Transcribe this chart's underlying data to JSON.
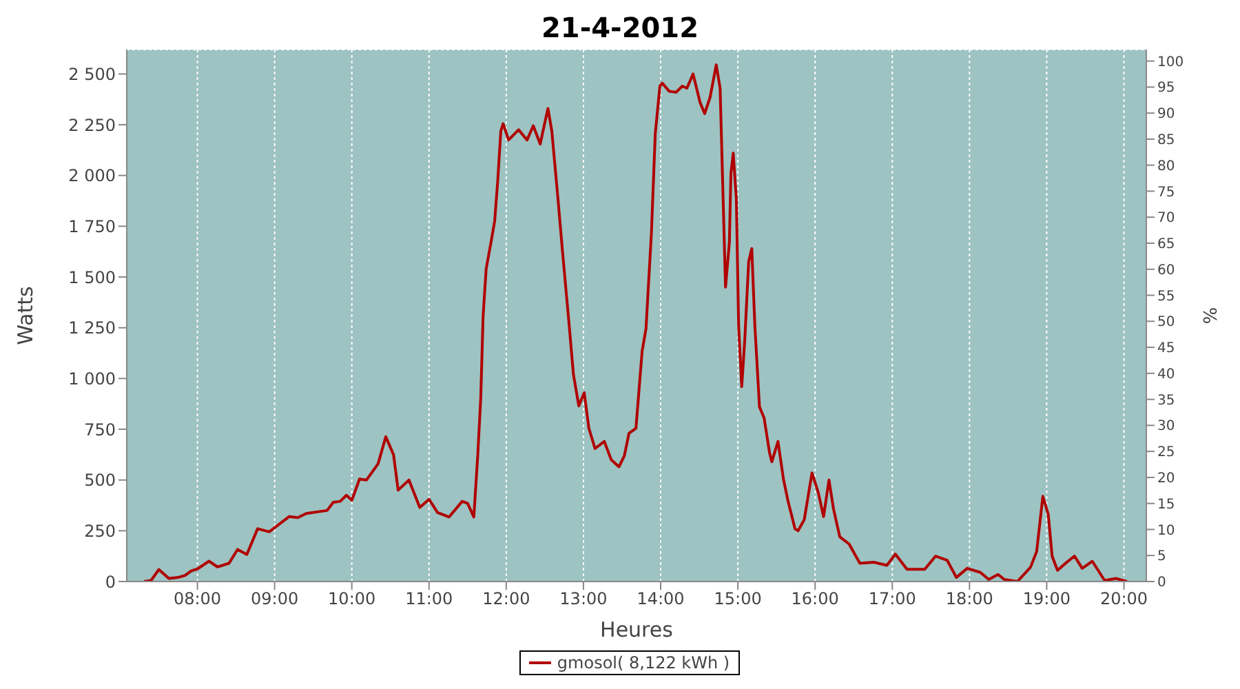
{
  "chart_data": {
    "type": "line",
    "title": "21-4-2012",
    "xlabel": "Heures",
    "ylabel": "Watts",
    "y2label": "%",
    "x": [
      7.31,
      7.4,
      7.5,
      7.63,
      7.75,
      7.84,
      7.92,
      8.0,
      8.15,
      8.26,
      8.41,
      8.52,
      8.64,
      8.78,
      8.93,
      9.19,
      9.3,
      9.41,
      9.68,
      9.76,
      9.85,
      9.93,
      10.0,
      10.1,
      10.19,
      10.34,
      10.44,
      10.54,
      10.6,
      10.74,
      10.88,
      11.0,
      11.11,
      11.26,
      11.43,
      11.5,
      11.58,
      11.63,
      11.67,
      11.7,
      11.74,
      11.8,
      11.85,
      11.89,
      11.93,
      11.96,
      12.03,
      12.16,
      12.27,
      12.35,
      12.44,
      12.54,
      12.59,
      12.67,
      12.73,
      12.81,
      12.87,
      12.94,
      13.01,
      13.07,
      13.15,
      13.27,
      13.36,
      13.46,
      13.53,
      13.59,
      13.68,
      13.76,
      13.81,
      13.88,
      13.93,
      13.99,
      14.02,
      14.11,
      14.2,
      14.28,
      14.34,
      14.42,
      14.51,
      14.57,
      14.64,
      14.72,
      14.77,
      14.81,
      14.84,
      14.89,
      14.91,
      14.94,
      14.98,
      15.01,
      15.05,
      15.09,
      15.14,
      15.18,
      15.22,
      15.28,
      15.34,
      15.41,
      15.44,
      15.52,
      15.59,
      15.65,
      15.74,
      15.78,
      15.86,
      15.96,
      16.04,
      16.11,
      16.18,
      16.24,
      16.32,
      16.44,
      16.58,
      16.76,
      16.93,
      17.04,
      17.19,
      17.42,
      17.56,
      17.71,
      17.83,
      17.97,
      18.14,
      18.25,
      18.37,
      18.45,
      18.62,
      18.79,
      18.87,
      18.95,
      19.02,
      19.07,
      19.14,
      19.26,
      19.36,
      19.46,
      19.59,
      19.75,
      19.9,
      20.04
    ],
    "series": [
      {
        "name": "gmosol( 8,122 kWh )",
        "color": "#b00000",
        "values": [
          0,
          5,
          59,
          15,
          20,
          30,
          52,
          62,
          100,
          72,
          90,
          158,
          133,
          260,
          245,
          320,
          315,
          335,
          350,
          390,
          395,
          425,
          400,
          505,
          500,
          580,
          713,
          625,
          450,
          500,
          365,
          405,
          340,
          318,
          395,
          385,
          318,
          615,
          905,
          1305,
          1540,
          1665,
          1775,
          1975,
          2220,
          2255,
          2175,
          2225,
          2175,
          2245,
          2155,
          2330,
          2220,
          1885,
          1620,
          1285,
          1020,
          865,
          930,
          755,
          655,
          690,
          600,
          565,
          620,
          730,
          755,
          1135,
          1245,
          1715,
          2205,
          2440,
          2455,
          2415,
          2410,
          2440,
          2430,
          2500,
          2360,
          2305,
          2385,
          2545,
          2430,
          1870,
          1450,
          1670,
          2010,
          2110,
          1885,
          1260,
          960,
          1195,
          1575,
          1640,
          1260,
          860,
          805,
          635,
          590,
          690,
          505,
          395,
          260,
          250,
          305,
          535,
          440,
          320,
          500,
          355,
          220,
          185,
          90,
          95,
          80,
          135,
          60,
          60,
          125,
          105,
          20,
          65,
          45,
          10,
          35,
          10,
          0,
          70,
          148,
          420,
          330,
          125,
          55,
          95,
          125,
          65,
          100,
          5,
          15,
          0
        ]
      }
    ],
    "xlim": [
      7.085,
      20.29
    ],
    "xticks": [
      {
        "value": 8,
        "label": "08:00"
      },
      {
        "value": 9,
        "label": "09:00"
      },
      {
        "value": 10,
        "label": "10:00"
      },
      {
        "value": 11,
        "label": "11:00"
      },
      {
        "value": 12,
        "label": "12:00"
      },
      {
        "value": 13,
        "label": "13:00"
      },
      {
        "value": 14,
        "label": "14:00"
      },
      {
        "value": 15,
        "label": "15:00"
      },
      {
        "value": 16,
        "label": "16:00"
      },
      {
        "value": 17,
        "label": "17:00"
      },
      {
        "value": 18,
        "label": "18:00"
      },
      {
        "value": 19,
        "label": "19:00"
      },
      {
        "value": 20,
        "label": "20:00"
      }
    ],
    "ylim": [
      0,
      2620
    ],
    "yticks": [
      0,
      250,
      500,
      750,
      {
        "value": 1000,
        "label": "1 000"
      },
      {
        "value": 1250,
        "label": "1 250"
      },
      {
        "value": 1500,
        "label": "1 500"
      },
      {
        "value": 1750,
        "label": "1 750"
      },
      {
        "value": 2000,
        "label": "2 000"
      },
      {
        "value": 2250,
        "label": "2 250"
      },
      {
        "value": 2500,
        "label": "2 500"
      }
    ],
    "y2lim": [
      0,
      102.2
    ],
    "y2ticks": [
      0,
      5,
      10,
      15,
      20,
      25,
      30,
      35,
      40,
      45,
      50,
      55,
      60,
      65,
      70,
      75,
      80,
      85,
      90,
      95,
      100
    ],
    "grid": true,
    "legend": "bottom",
    "marker": "none",
    "line_style": "solid"
  }
}
